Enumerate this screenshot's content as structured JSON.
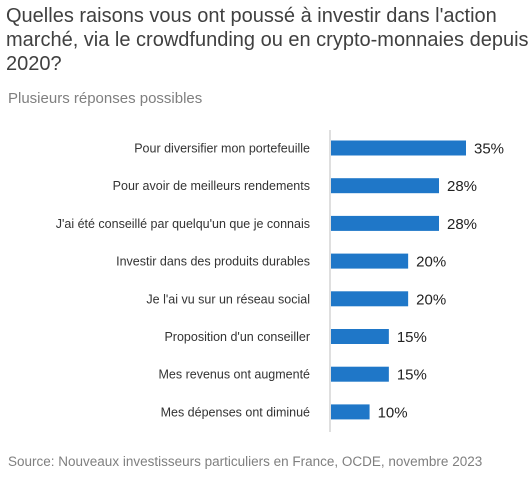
{
  "title": "Quelles raisons vous ont poussé à investir dans l'action marché, via le crowdfunding ou en crypto-monnaies depuis 2020?",
  "subtitle": "Plusieurs réponses possibles",
  "source": "Source: Nouveaux investisseurs particuliers en France, OCDE, novembre 2023",
  "colors": {
    "bar": "#1f77c8",
    "axis": "#bfbfbf"
  },
  "chart_data": {
    "type": "bar",
    "orientation": "horizontal",
    "categories": [
      "Pour diversifier mon portefeuille",
      "Pour avoir de meilleurs rendements",
      "J'ai été conseillé par quelqu'un que je connais",
      "Investir dans des produits durables",
      "Je l'ai vu sur un réseau social",
      "Proposition d'un conseiller",
      "Mes revenus ont augmenté",
      "Mes dépenses ont diminué"
    ],
    "values": [
      35,
      28,
      28,
      20,
      20,
      15,
      15,
      10
    ],
    "value_labels": [
      "35%",
      "28%",
      "28%",
      "20%",
      "20%",
      "15%",
      "15%",
      "10%"
    ],
    "xlim": [
      0,
      35
    ],
    "grid": false
  }
}
